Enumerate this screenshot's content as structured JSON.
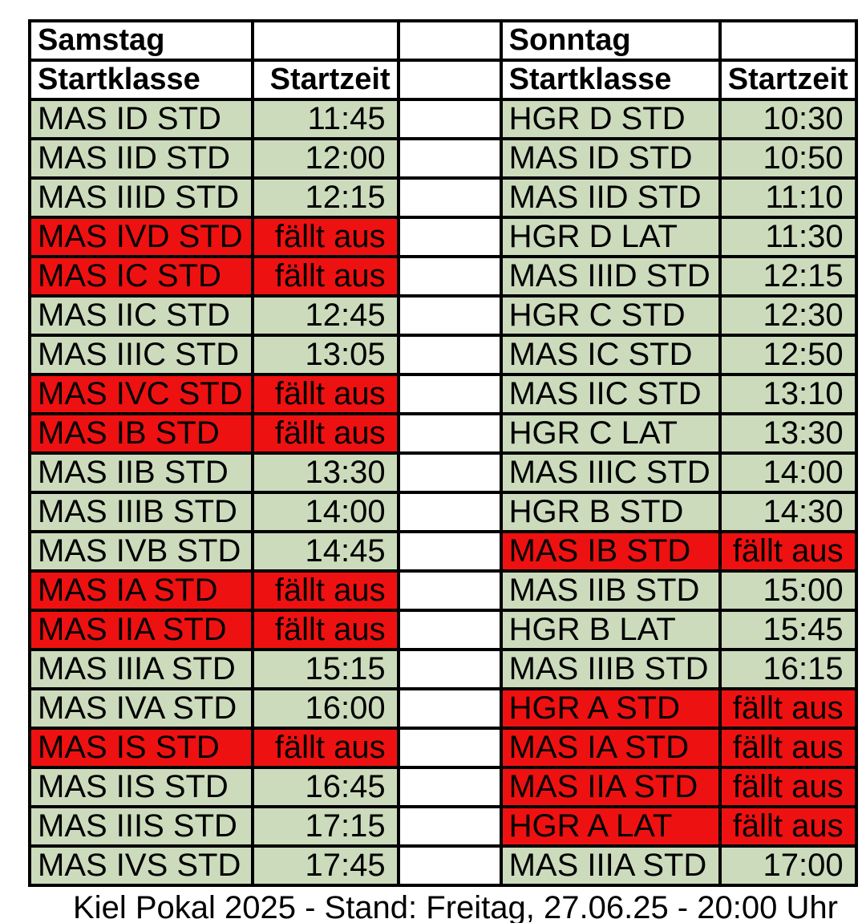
{
  "page": {
    "footer": "Kiel Pokal 2025 - Stand: Freitag, 27.06.25 - 20:00 Uhr"
  },
  "colors": {
    "scheduled_bg": "#ccdbbc",
    "cancelled_bg": "#ee1111",
    "border": "#000000",
    "background": "#ffffff",
    "text": "#000000"
  },
  "table": {
    "days": [
      {
        "name": "Samstag",
        "col_class": "Startklasse",
        "col_time": "Startzeit"
      },
      {
        "name": "Sonntag",
        "col_class": "Startklasse",
        "col_time": "Startzeit"
      }
    ],
    "rows": [
      {
        "sat": {
          "klasse": "MAS ID STD",
          "zeit": "11:45",
          "cancelled": false
        },
        "sun": {
          "klasse": "HGR D STD",
          "zeit": "10:30",
          "cancelled": false
        }
      },
      {
        "sat": {
          "klasse": "MAS IID STD",
          "zeit": "12:00",
          "cancelled": false
        },
        "sun": {
          "klasse": "MAS ID STD",
          "zeit": "10:50",
          "cancelled": false
        }
      },
      {
        "sat": {
          "klasse": "MAS IIID STD",
          "zeit": "12:15",
          "cancelled": false
        },
        "sun": {
          "klasse": "MAS IID STD",
          "zeit": "11:10",
          "cancelled": false
        }
      },
      {
        "sat": {
          "klasse": "MAS IVD STD",
          "zeit": "fällt aus",
          "cancelled": true
        },
        "sun": {
          "klasse": "HGR D LAT",
          "zeit": "11:30",
          "cancelled": false
        }
      },
      {
        "sat": {
          "klasse": "MAS IC STD",
          "zeit": "fällt aus",
          "cancelled": true
        },
        "sun": {
          "klasse": "MAS IIID STD",
          "zeit": "12:15",
          "cancelled": false
        }
      },
      {
        "sat": {
          "klasse": "MAS IIC STD",
          "zeit": "12:45",
          "cancelled": false
        },
        "sun": {
          "klasse": "HGR C STD",
          "zeit": "12:30",
          "cancelled": false
        }
      },
      {
        "sat": {
          "klasse": "MAS IIIC STD",
          "zeit": "13:05",
          "cancelled": false
        },
        "sun": {
          "klasse": "MAS IC STD",
          "zeit": "12:50",
          "cancelled": false
        }
      },
      {
        "sat": {
          "klasse": "MAS IVC STD",
          "zeit": "fällt aus",
          "cancelled": true
        },
        "sun": {
          "klasse": "MAS IIC STD",
          "zeit": "13:10",
          "cancelled": false
        }
      },
      {
        "sat": {
          "klasse": "MAS IB STD",
          "zeit": "fällt aus",
          "cancelled": true
        },
        "sun": {
          "klasse": "HGR C LAT",
          "zeit": "13:30",
          "cancelled": false
        }
      },
      {
        "sat": {
          "klasse": "MAS IIB STD",
          "zeit": "13:30",
          "cancelled": false
        },
        "sun": {
          "klasse": "MAS IIIC STD",
          "zeit": "14:00",
          "cancelled": false
        }
      },
      {
        "sat": {
          "klasse": "MAS IIIB STD",
          "zeit": "14:00",
          "cancelled": false
        },
        "sun": {
          "klasse": "HGR B STD",
          "zeit": "14:30",
          "cancelled": false
        }
      },
      {
        "sat": {
          "klasse": "MAS IVB STD",
          "zeit": "14:45",
          "cancelled": false
        },
        "sun": {
          "klasse": "MAS IB STD",
          "zeit": "fällt aus",
          "cancelled": true
        }
      },
      {
        "sat": {
          "klasse": "MAS IA STD",
          "zeit": "fällt aus",
          "cancelled": true
        },
        "sun": {
          "klasse": "MAS IIB STD",
          "zeit": "15:00",
          "cancelled": false
        }
      },
      {
        "sat": {
          "klasse": "MAS IIA STD",
          "zeit": "fällt aus",
          "cancelled": true
        },
        "sun": {
          "klasse": "HGR B LAT",
          "zeit": "15:45",
          "cancelled": false
        }
      },
      {
        "sat": {
          "klasse": "MAS IIIA STD",
          "zeit": "15:15",
          "cancelled": false
        },
        "sun": {
          "klasse": "MAS IIIB STD",
          "zeit": "16:15",
          "cancelled": false
        }
      },
      {
        "sat": {
          "klasse": "MAS IVA STD",
          "zeit": "16:00",
          "cancelled": false
        },
        "sun": {
          "klasse": "HGR A STD",
          "zeit": "fällt aus",
          "cancelled": true
        }
      },
      {
        "sat": {
          "klasse": "MAS IS STD",
          "zeit": "fällt aus",
          "cancelled": true
        },
        "sun": {
          "klasse": "MAS IA STD",
          "zeit": "fällt aus",
          "cancelled": true
        }
      },
      {
        "sat": {
          "klasse": "MAS IIS STD",
          "zeit": "16:45",
          "cancelled": false
        },
        "sun": {
          "klasse": "MAS IIA STD",
          "zeit": "fällt aus",
          "cancelled": true
        }
      },
      {
        "sat": {
          "klasse": "MAS IIIS STD",
          "zeit": "17:15",
          "cancelled": false
        },
        "sun": {
          "klasse": "HGR A LAT",
          "zeit": "fällt aus",
          "cancelled": true
        }
      },
      {
        "sat": {
          "klasse": "MAS IVS STD",
          "zeit": "17:45",
          "cancelled": false
        },
        "sun": {
          "klasse": "MAS IIIA STD",
          "zeit": "17:00",
          "cancelled": false
        }
      }
    ]
  }
}
